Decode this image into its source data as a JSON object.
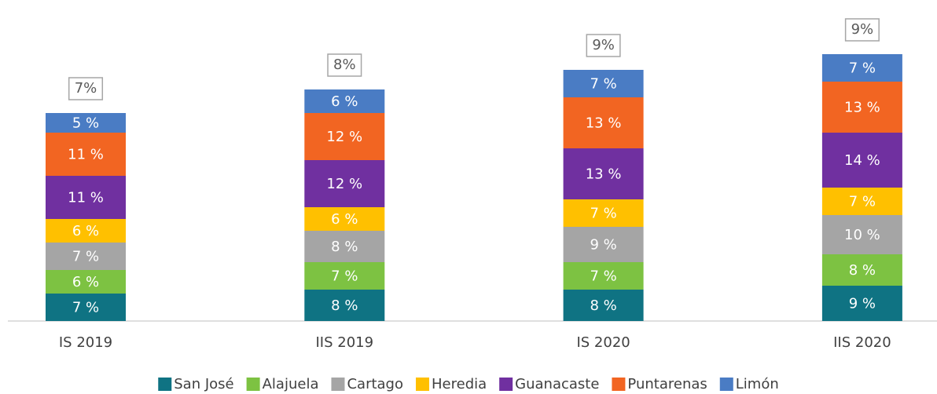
{
  "chart_data": {
    "type": "stacked_bar",
    "categories": [
      "IS 2019",
      "IIS 2019",
      "IS 2020",
      "IIS 2020"
    ],
    "series": [
      {
        "name": "San José",
        "color": "#0f7383",
        "values": [
          7,
          8,
          8,
          9
        ],
        "value_labels": [
          "7 %",
          "8 %",
          "8 %",
          "9 %"
        ]
      },
      {
        "name": "Alajuela",
        "color": "#7dc242",
        "values": [
          6,
          7,
          7,
          8
        ],
        "value_labels": [
          "6 %",
          "7 %",
          "7 %",
          "8 %"
        ]
      },
      {
        "name": "Cartago",
        "color": "#a5a5a5",
        "values": [
          7,
          8,
          9,
          10
        ],
        "value_labels": [
          "7 %",
          "8 %",
          "9 %",
          "10 %"
        ]
      },
      {
        "name": "Heredia",
        "color": "#ffc000",
        "values": [
          6,
          6,
          7,
          7
        ],
        "value_labels": [
          "6 %",
          "6 %",
          "7 %",
          "7 %"
        ]
      },
      {
        "name": "Guanacaste",
        "color": "#7030a0",
        "values": [
          11,
          12,
          13,
          14
        ],
        "value_labels": [
          "11 %",
          "12 %",
          "13 %",
          "14 %"
        ]
      },
      {
        "name": "Puntarenas",
        "color": "#f26522",
        "values": [
          11,
          12,
          13,
          13
        ],
        "value_labels": [
          "11 %",
          "12 %",
          "13 %",
          "13 %"
        ]
      },
      {
        "name": "Limón",
        "color": "#4a7cc4",
        "values": [
          5,
          6,
          7,
          7
        ],
        "value_labels": [
          "5 %",
          "6 %",
          "7 %",
          "7 %"
        ]
      }
    ],
    "annotations": [
      "7%",
      "8%",
      "9%",
      "9%"
    ],
    "ylim": [
      0,
      80
    ],
    "legend": "bottom"
  }
}
